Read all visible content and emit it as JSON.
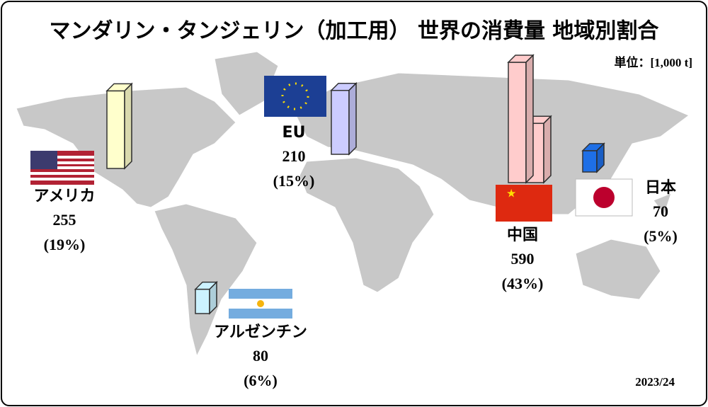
{
  "title": "マンダリン・タンジェリン（加工用） 世界の消費量 地域別割合",
  "unit": "単位：[1,000 t]",
  "period": "2023/24",
  "chart_data": {
    "type": "bar",
    "categories": [
      "アメリカ",
      "EU",
      "中国",
      "日本",
      "アルゼンチン"
    ],
    "values": [
      255,
      210,
      590,
      70,
      80
    ],
    "shares": [
      19,
      15,
      43,
      5,
      6
    ],
    "share_labels": [
      "(19%)",
      "(15%)",
      "(43%)",
      "(5%)",
      "(6%)"
    ],
    "colors": [
      "#ffffcc",
      "#ccccff",
      "#ffcccc",
      "#1e6fe6",
      "#ccf2ff"
    ]
  }
}
